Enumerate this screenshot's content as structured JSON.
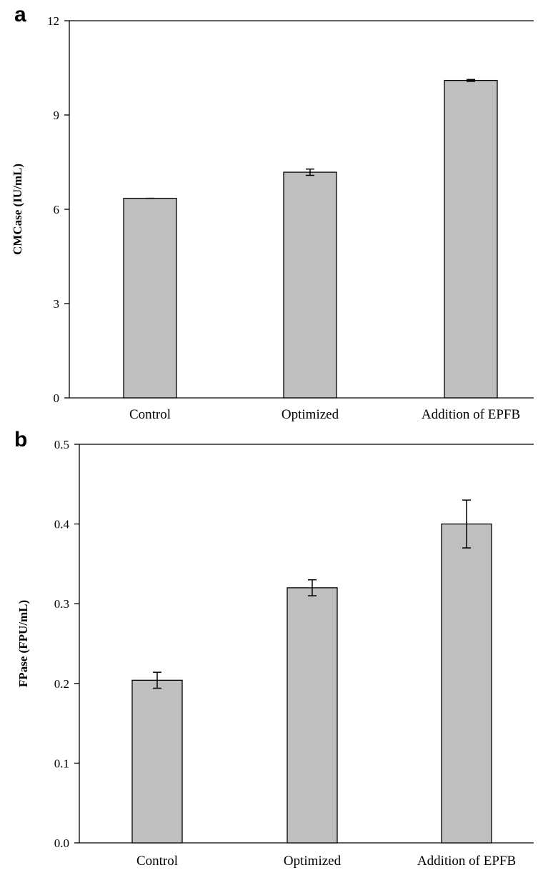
{
  "chart_data": [
    {
      "panel": "a",
      "type": "bar",
      "categories": [
        "Control",
        "Optimized",
        "Addition of EPFB"
      ],
      "values": [
        6.35,
        7.18,
        10.1
      ],
      "errors": [
        0.0,
        0.1,
        0.03
      ],
      "ylabel": "CMCase (IU/mL)",
      "ylim": [
        0,
        12
      ],
      "yticks": [
        "0",
        "3",
        "6",
        "9",
        "12"
      ],
      "ytick_values": [
        0,
        3,
        6,
        9,
        12
      ],
      "bar_color": "#bfbfbf",
      "grid": false,
      "legend": "none"
    },
    {
      "panel": "b",
      "type": "bar",
      "categories": [
        "Control",
        "Optimized",
        "Addition of EPFB"
      ],
      "values": [
        0.204,
        0.32,
        0.4
      ],
      "errors": [
        0.01,
        0.01,
        0.03
      ],
      "ylabel": "FPase (FPU/mL)",
      "ylim": [
        0,
        0.5
      ],
      "yticks": [
        "0.0",
        "0.1",
        "0.2",
        "0.3",
        "0.4",
        "0.5"
      ],
      "ytick_values": [
        0,
        0.1,
        0.2,
        0.3,
        0.4,
        0.5
      ],
      "bar_color": "#bfbfbf",
      "grid": false,
      "legend": "none"
    }
  ]
}
